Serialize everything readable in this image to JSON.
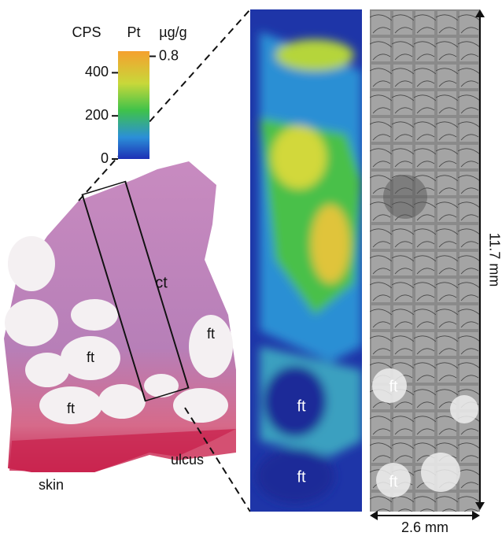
{
  "colorbar": {
    "cps_label": "CPS",
    "element_label": "Pt",
    "unit_label": "µg/g",
    "cps_range": [
      0,
      500
    ],
    "cps_ticks": [
      0,
      200,
      400
    ],
    "conc_range": [
      0,
      0.84
    ],
    "conc_ticks": [
      0.8
    ]
  },
  "histology": {
    "labels": [
      "ct",
      "ft",
      "ft",
      "ft",
      "skin",
      "ulcus"
    ]
  },
  "map": {
    "labels": [
      "ft",
      "ft"
    ]
  },
  "micrograph": {
    "labels": [
      "ft",
      "ft"
    ],
    "height": "11.7 mm",
    "width": "2.6 mm"
  }
}
